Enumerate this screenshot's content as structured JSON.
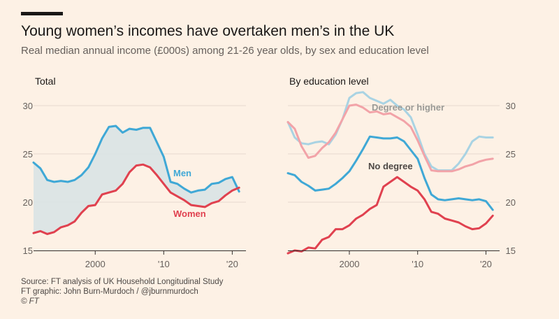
{
  "header": {
    "title": "Young women’s incomes have overtaken men’s in the UK",
    "subtitle": "Real median annual income (£000s) among 21-26 year olds, by sex and education level"
  },
  "footer": {
    "source": "Source: FT analysis of UK Household Longitudinal Study",
    "graphic": "FT graphic: John Burn-Murdoch / @jburnmurdoch",
    "copyright": "© FT"
  },
  "colors": {
    "men": "#3fa8d6",
    "women": "#e0414f",
    "degree_men": "#a9d3e3",
    "degree_women": "#f2a3a8",
    "gap_fill": "#d9e3e4"
  },
  "chart_data": [
    {
      "type": "line",
      "title": "Total",
      "xlabel": "",
      "ylabel": "",
      "xlim": [
        1991,
        2022
      ],
      "ylim": [
        15,
        31
      ],
      "yticks": [
        15,
        20,
        25,
        30
      ],
      "xticks": [
        {
          "value": 2000,
          "label": "2000"
        },
        {
          "value": 2010,
          "label": "'10"
        },
        {
          "value": 2020,
          "label": "'20"
        }
      ],
      "y_axis_side": "left",
      "grid": true,
      "shaded_gap": true,
      "x": [
        1991,
        1992,
        1993,
        1994,
        1995,
        1996,
        1997,
        1998,
        1999,
        2000,
        2001,
        2002,
        2003,
        2004,
        2005,
        2006,
        2007,
        2008,
        2009,
        2010,
        2011,
        2012,
        2013,
        2014,
        2015,
        2016,
        2017,
        2018,
        2019,
        2020,
        2021
      ],
      "series": [
        {
          "name": "Men",
          "color_key": "men",
          "values": [
            24.1,
            23.5,
            22.3,
            22.1,
            22.2,
            22.1,
            22.3,
            22.8,
            23.6,
            25.0,
            26.6,
            27.8,
            27.9,
            27.2,
            27.6,
            27.5,
            27.7,
            27.7,
            26.2,
            24.7,
            22.1,
            21.9,
            21.4,
            21.0,
            21.2,
            21.3,
            21.9,
            22.0,
            22.4,
            22.6,
            21.1
          ]
        },
        {
          "name": "Women",
          "color_key": "women",
          "values": [
            16.8,
            17.0,
            16.7,
            16.9,
            17.4,
            17.6,
            18.0,
            18.9,
            19.6,
            19.7,
            20.8,
            21.0,
            21.2,
            21.9,
            23.1,
            23.8,
            23.9,
            23.6,
            22.8,
            21.9,
            21.0,
            20.6,
            20.2,
            19.7,
            19.6,
            19.5,
            19.9,
            20.1,
            20.7,
            21.2,
            21.5
          ]
        }
      ]
    },
    {
      "type": "line",
      "title": "By education level",
      "xlabel": "",
      "ylabel": "",
      "xlim": [
        1991,
        2022
      ],
      "ylim": [
        15,
        31
      ],
      "yticks": [
        15,
        20,
        25,
        30
      ],
      "xticks": [
        {
          "value": 2000,
          "label": "2000"
        },
        {
          "value": 2010,
          "label": "'10"
        },
        {
          "value": 2020,
          "label": "'20"
        }
      ],
      "y_axis_side": "right",
      "grid": true,
      "annotations": [
        "Degree or higher",
        "No degree"
      ],
      "x": [
        1991,
        1992,
        1993,
        1994,
        1995,
        1996,
        1997,
        1998,
        1999,
        2000,
        2001,
        2002,
        2003,
        2004,
        2005,
        2006,
        2007,
        2008,
        2009,
        2010,
        2011,
        2012,
        2013,
        2014,
        2015,
        2016,
        2017,
        2018,
        2019,
        2020,
        2021
      ],
      "series": [
        {
          "group": "Degree or higher",
          "color_key": "degree_men",
          "values": [
            28.3,
            26.7,
            26.1,
            26.0,
            26.2,
            26.3,
            26.0,
            27.0,
            28.6,
            30.8,
            31.3,
            31.4,
            30.8,
            30.5,
            30.2,
            30.6,
            30.0,
            29.6,
            28.8,
            27.0,
            25.0,
            23.7,
            23.3,
            23.3,
            23.3,
            24.0,
            25.0,
            26.3,
            26.8,
            26.7,
            26.7
          ]
        },
        {
          "group": "Degree or higher",
          "color_key": "degree_women",
          "values": [
            28.3,
            27.6,
            25.8,
            24.6,
            24.8,
            25.6,
            26.2,
            27.2,
            28.6,
            30.0,
            30.1,
            29.8,
            29.3,
            29.4,
            29.1,
            29.2,
            28.8,
            28.4,
            27.8,
            26.4,
            24.8,
            23.3,
            23.2,
            23.2,
            23.2,
            23.4,
            23.7,
            23.9,
            24.2,
            24.4,
            24.5
          ]
        },
        {
          "group": "No degree",
          "color_key": "men",
          "values": [
            23.0,
            22.8,
            22.1,
            21.7,
            21.2,
            21.3,
            21.4,
            21.9,
            22.5,
            23.2,
            24.3,
            25.5,
            26.8,
            26.7,
            26.6,
            26.6,
            26.7,
            26.3,
            25.4,
            24.5,
            22.5,
            20.8,
            20.3,
            20.2,
            20.3,
            20.4,
            20.3,
            20.2,
            20.3,
            20.1,
            19.2
          ]
        },
        {
          "group": "No degree",
          "color_key": "women",
          "values": [
            14.7,
            15.0,
            14.9,
            15.3,
            15.2,
            16.1,
            16.4,
            17.2,
            17.2,
            17.6,
            18.3,
            18.7,
            19.3,
            19.7,
            21.6,
            22.1,
            22.6,
            22.1,
            21.6,
            21.2,
            20.3,
            19.0,
            18.8,
            18.3,
            18.1,
            17.9,
            17.5,
            17.2,
            17.3,
            17.8,
            18.6
          ]
        }
      ]
    }
  ]
}
